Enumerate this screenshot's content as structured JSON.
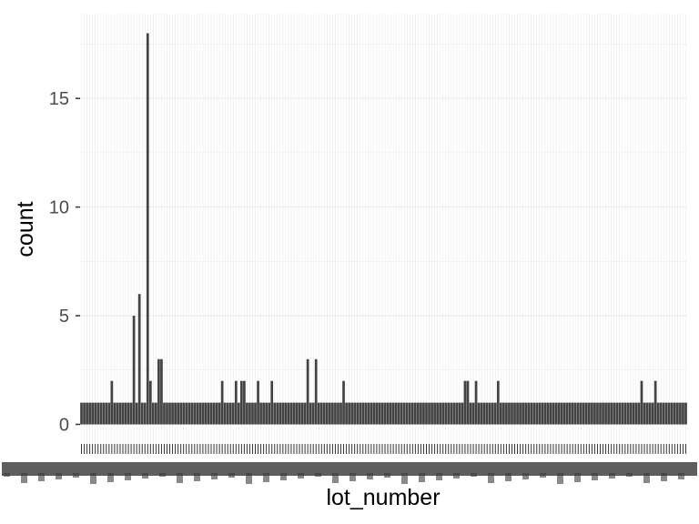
{
  "chart_data": {
    "type": "bar",
    "title": "",
    "xlabel": "lot_number",
    "ylabel": "count",
    "ylim": [
      -0.9,
      18.9
    ],
    "yticks": [
      0,
      5,
      10,
      15
    ],
    "ytick_labels": [
      "0",
      "5",
      "10",
      "15"
    ],
    "n_categories": 220,
    "x_tick_labels_note": "220 overlapping, illegible category labels",
    "default_value": 1,
    "values_by_index": {
      "11": 2,
      "19": 5,
      "21": 6,
      "24": 18,
      "25": 2,
      "28": 3,
      "29": 3,
      "51": 2,
      "56": 2,
      "58": 2,
      "59": 2,
      "64": 2,
      "69": 2,
      "82": 3,
      "85": 3,
      "95": 2,
      "139": 2,
      "140": 2,
      "143": 2,
      "151": 2,
      "203": 2,
      "208": 2
    },
    "colors": {
      "panel": "#ffffff",
      "grid": "#ebebeb",
      "bar": "#434343",
      "tick": "#333333",
      "tick_text": "#4d4d4d"
    }
  }
}
